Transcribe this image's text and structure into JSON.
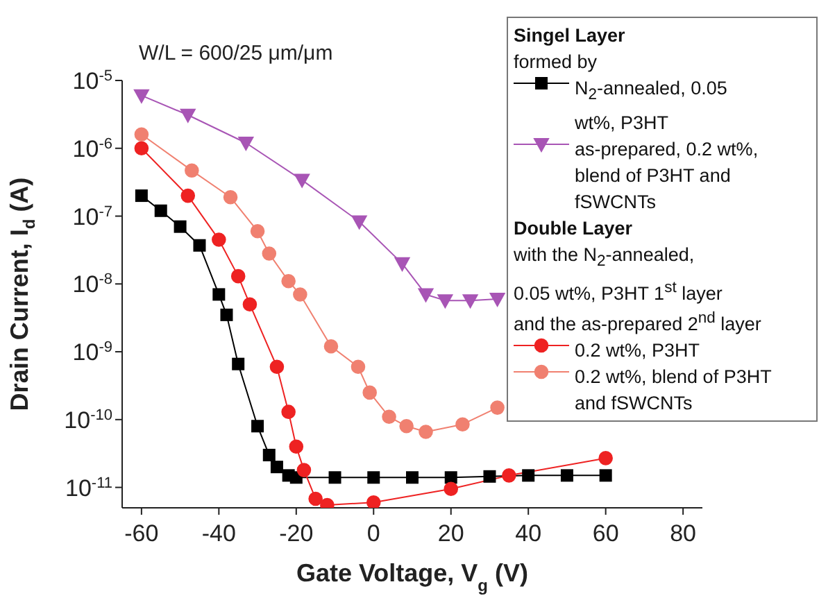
{
  "chart_data": {
    "type": "line",
    "xlabel": "Gate Voltage, V$_{g}$ (V)",
    "ylabel": "Drain Current, I$_{d}$ (A)",
    "legend_title": "Singel Layer",
    "annotations": [
      "W/L = 600/25 μm/μm",
      "formed by",
      "Double Layer",
      "with the N$_{2}$-annealed,",
      "0.05 wt%, P3HT 1$^{st}$ layer",
      "and the as-prepared 2$^{nd}$ layer"
    ],
    "log": "y",
    "grid": false,
    "legend": "top right",
    "xlim": [
      -65,
      85
    ],
    "xticks": [
      -60,
      -40,
      -20,
      0,
      20,
      40,
      60,
      80
    ],
    "ylim": [
      5e-12,
      1e-05
    ],
    "yticks": [
      {
        "value": 1e-05,
        "label": "10$^{-5}$"
      },
      {
        "value": 1e-06,
        "label": "10$^{-6}$"
      },
      {
        "value": 1e-07,
        "label": "10$^{-7}$"
      },
      {
        "value": 1e-08,
        "label": "10$^{-8}$"
      },
      {
        "value": 1e-09,
        "label": "10$^{-9}$"
      },
      {
        "value": 1e-10,
        "label": "10$^{-10}$"
      },
      {
        "value": 1e-11,
        "label": "10$^{-11}$"
      }
    ],
    "series": [
      {
        "name": "N$_{2}$-annealed, 0.05 wt%, P3HT",
        "color": "#000000",
        "marker": "square",
        "x": [
          -60,
          -55,
          -50,
          -45,
          -40,
          -38,
          -35,
          -30,
          -27,
          -25,
          -22,
          -20,
          -10,
          0,
          10,
          20,
          30,
          40,
          50,
          60
        ],
        "values": [
          2e-07,
          1.2e-07,
          7e-08,
          3.7e-08,
          7e-09,
          3.5e-09,
          6.6e-10,
          8e-11,
          3e-11,
          2e-11,
          1.5e-11,
          1.4e-11,
          1.4e-11,
          1.4e-11,
          1.4e-11,
          1.4e-11,
          1.45e-11,
          1.5e-11,
          1.5e-11,
          1.5e-11
        ]
      },
      {
        "name": "as-prepared, 0.2 wt%, blend of P3HT and fSWCNTs",
        "color": "#a855b5",
        "marker": "triangle",
        "x": [
          -60,
          -48,
          -33,
          -18.5,
          -3.7,
          7.4,
          13.5,
          18.5,
          25,
          32
        ],
        "values": [
          6e-06,
          3.1e-06,
          1.2e-06,
          3.4e-07,
          8.3e-08,
          2e-08,
          7e-09,
          5.7e-09,
          5.7e-09,
          6e-09
        ]
      },
      {
        "name": "0.2 wt%, P3HT",
        "color": "#ee2222",
        "marker": "circle",
        "x": [
          -60,
          -48,
          -40,
          -35,
          -32,
          -25,
          -22,
          -20,
          -18,
          -15,
          -12,
          0,
          20,
          35,
          60
        ],
        "values": [
          1e-06,
          2e-07,
          4.5e-08,
          1.3e-08,
          5e-09,
          6e-10,
          1.3e-10,
          4e-11,
          1.8e-11,
          6.8e-12,
          5.5e-12,
          6e-12,
          9.5e-12,
          1.5e-11,
          2.7e-11
        ]
      },
      {
        "name": "0.2 wt%, blend of P3HT and fSWCNTs",
        "color": "#f08070",
        "marker": "circle",
        "x": [
          -60,
          -47,
          -37,
          -30,
          -27,
          -22,
          -19,
          -11,
          -4,
          -1,
          4,
          8.5,
          13.5,
          23,
          32
        ],
        "values": [
          1.6e-06,
          4.7e-07,
          1.9e-07,
          6e-08,
          2.8e-08,
          1.1e-08,
          7e-09,
          1.2e-09,
          6e-10,
          2.5e-10,
          1.1e-10,
          8e-11,
          6.6e-11,
          8.5e-11,
          1.5e-10
        ]
      }
    ]
  }
}
